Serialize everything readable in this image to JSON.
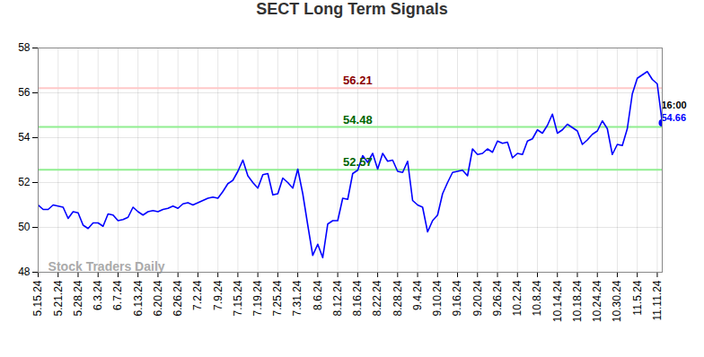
{
  "chart_data": {
    "type": "line",
    "title": "SECT Long Term Signals",
    "categories": [
      "5.15.24",
      null,
      null,
      null,
      "5.21.24",
      null,
      null,
      null,
      "5.28.24",
      null,
      null,
      null,
      "6.3.24",
      null,
      null,
      null,
      "6.7.24",
      null,
      null,
      null,
      "6.13.24",
      null,
      null,
      null,
      "6.20.24",
      null,
      null,
      null,
      "6.26.24",
      null,
      null,
      null,
      "7.2.24",
      null,
      null,
      null,
      "7.9.24",
      null,
      null,
      null,
      "7.15.24",
      null,
      null,
      null,
      "7.19.24",
      null,
      null,
      null,
      "7.25.24",
      null,
      null,
      null,
      "7.31.24",
      null,
      null,
      null,
      "8.6.24",
      null,
      null,
      null,
      "8.12.24",
      null,
      null,
      null,
      "8.16.24",
      null,
      null,
      null,
      "8.22.24",
      null,
      null,
      null,
      "8.28.24",
      null,
      null,
      null,
      "9.4.24",
      null,
      null,
      null,
      "9.10.24",
      null,
      null,
      null,
      "9.16.24",
      null,
      null,
      null,
      "9.20.24",
      null,
      null,
      null,
      "9.26.24",
      null,
      null,
      null,
      "10.2.24",
      null,
      null,
      null,
      "10.8.24",
      null,
      null,
      null,
      "10.14.24",
      null,
      null,
      null,
      "10.18.24",
      null,
      null,
      null,
      "10.24.24",
      null,
      null,
      null,
      "10.30.24",
      null,
      null,
      null,
      "11.5.24",
      null,
      null,
      null,
      "11.11.24",
      null
    ],
    "values": [
      51.0,
      50.8,
      50.8,
      51.0,
      50.95,
      50.9,
      50.4,
      50.7,
      50.65,
      50.1,
      49.95,
      50.2,
      50.2,
      50.05,
      50.6,
      50.55,
      50.3,
      50.35,
      50.45,
      50.9,
      50.7,
      50.55,
      50.7,
      50.75,
      50.7,
      50.8,
      50.85,
      50.95,
      50.85,
      51.05,
      51.1,
      51.0,
      51.1,
      51.2,
      51.3,
      51.35,
      51.3,
      51.6,
      51.95,
      52.1,
      52.5,
      53.0,
      52.3,
      52.0,
      51.75,
      52.35,
      52.4,
      51.45,
      51.5,
      52.2,
      52.0,
      51.75,
      52.6,
      51.5,
      50.1,
      48.75,
      49.25,
      48.65,
      50.15,
      50.3,
      50.3,
      51.3,
      51.25,
      52.4,
      52.55,
      53.2,
      52.9,
      53.3,
      52.6,
      53.3,
      52.95,
      53.0,
      52.5,
      52.45,
      52.95,
      51.2,
      51.0,
      50.9,
      49.8,
      50.3,
      50.55,
      51.5,
      52.0,
      52.45,
      52.5,
      52.55,
      52.3,
      53.5,
      53.25,
      53.3,
      53.5,
      53.35,
      53.85,
      53.75,
      53.8,
      53.1,
      53.3,
      53.25,
      53.85,
      53.95,
      54.35,
      54.2,
      54.55,
      55.05,
      54.2,
      54.35,
      54.6,
      54.45,
      54.3,
      53.7,
      53.9,
      54.15,
      54.3,
      54.75,
      54.4,
      53.25,
      53.7,
      53.65,
      54.4,
      55.95,
      56.65,
      56.8,
      56.95,
      56.6,
      56.4,
      54.66
    ],
    "color": "#0000ff",
    "ylim": [
      48,
      58
    ],
    "yticks": [
      48,
      50,
      52,
      54,
      56,
      58
    ],
    "grid": true,
    "levels": [
      {
        "value": 56.21,
        "color": "#ffc8c8",
        "label_color": "#8b0000"
      },
      {
        "value": 54.48,
        "color": "#90ee90",
        "label_color": "#006400"
      },
      {
        "value": 52.57,
        "color": "#90ee90",
        "label_color": "#006400"
      }
    ],
    "last_time": "16:00",
    "watermark": "Stock Traders Daily"
  }
}
